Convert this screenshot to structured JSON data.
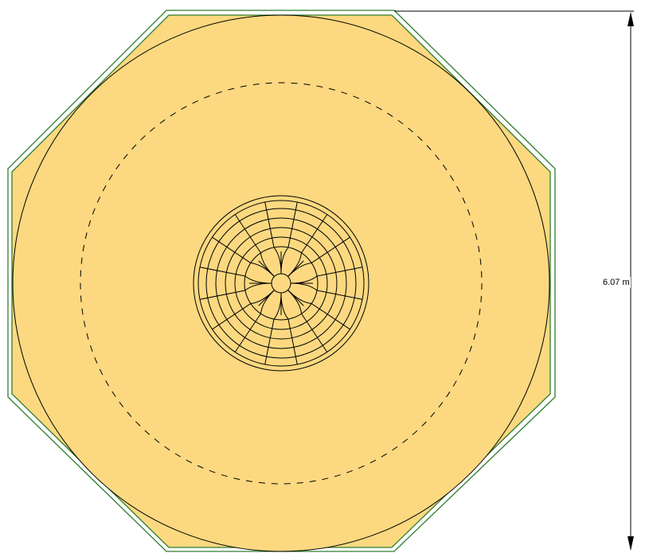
{
  "dimension": {
    "label": "6.07 m"
  },
  "colors": {
    "fill": "#fcd980",
    "outline_green": "#2e7d2e",
    "line": "#000000",
    "background": "#ffffff"
  },
  "structure": {
    "octagon_sides": 8,
    "center_rings": 6,
    "center_spokes": 16
  }
}
